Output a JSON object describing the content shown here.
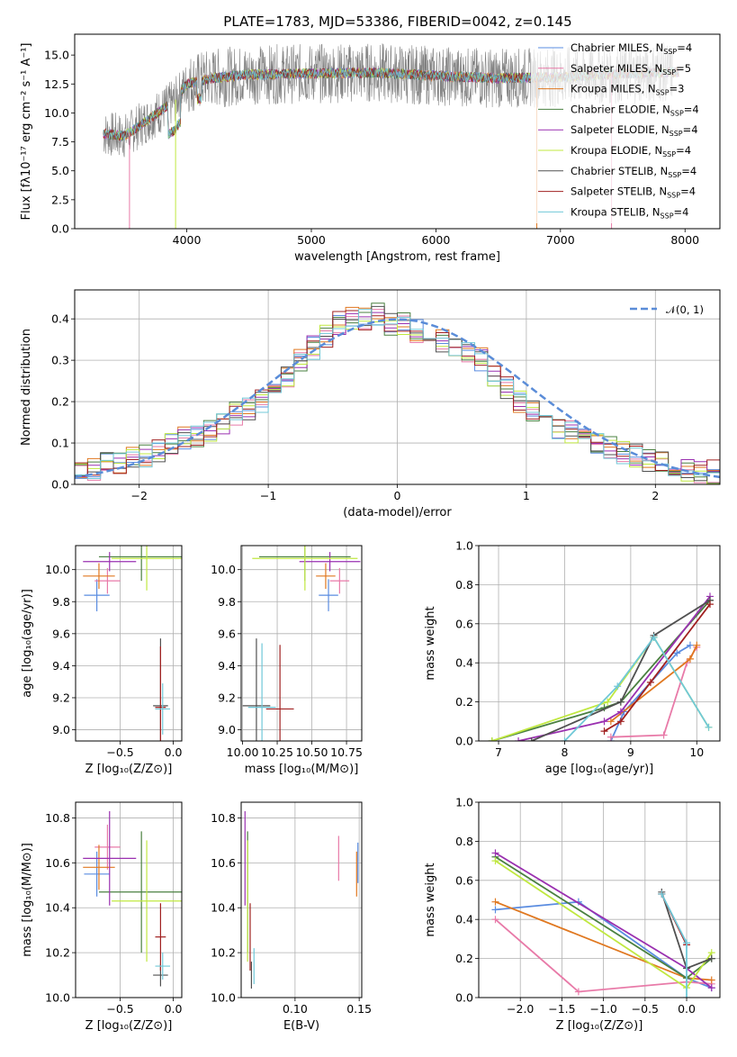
{
  "figure_title": "PLATE=1783, MJD=53386, FIBERID=0042, z=0.145",
  "colors": {
    "Chabrier MILES": "#5a8ce0",
    "Salpeter MILES": "#e87aa8",
    "Kroupa MILES": "#e07820",
    "Chabrier ELODIE": "#4a8040",
    "Salpeter ELODIE": "#9a30b0",
    "Kroupa ELODIE": "#c0e840",
    "Chabrier STELIB": "#505050",
    "Salpeter STELIB": "#a02020",
    "Kroupa STELIB": "#70c8d8"
  },
  "chart_data": [
    {
      "type": "line",
      "title": "PLATE=1783, MJD=53386, FIBERID=0042, z=0.145",
      "xlabel": "wavelength [Angstrom, rest frame]",
      "ylabel": "Flux [fλ10⁻¹⁷ erg cm⁻² s⁻¹ A⁻¹]",
      "xlim": [
        3100,
        8280
      ],
      "ylim": [
        0,
        16.8
      ],
      "xticks": [
        "4000",
        "5000",
        "6000",
        "7000",
        "8000"
      ],
      "yticks": [
        "0.0",
        "2.5",
        "5.0",
        "7.5",
        "10.0",
        "12.5",
        "15.0"
      ],
      "legend_position": "upper-right",
      "legend": [
        {
          "label": "Chabrier MILES, N",
          "sub": "SSP",
          "tail": "=4"
        },
        {
          "label": "Salpeter MILES, N",
          "sub": "SSP",
          "tail": "=5"
        },
        {
          "label": "Kroupa MILES, N",
          "sub": "SSP",
          "tail": "=3"
        },
        {
          "label": "Chabrier ELODIE, N",
          "sub": "SSP",
          "tail": "=4"
        },
        {
          "label": "Salpeter ELODIE, N",
          "sub": "SSP",
          "tail": "=4"
        },
        {
          "label": "Kroupa ELODIE, N",
          "sub": "SSP",
          "tail": "=4"
        },
        {
          "label": "Chabrier STELIB, N",
          "sub": "SSP",
          "tail": "=4"
        },
        {
          "label": "Salpeter STELIB, N",
          "sub": "SSP",
          "tail": "=4"
        },
        {
          "label": "Kroupa STELIB, N",
          "sub": "SSP",
          "tail": "=4"
        }
      ],
      "continuum_x": [
        3330,
        3500,
        3700,
        3900,
        4000,
        4200,
        4500,
        5000,
        5500,
        6000,
        6500,
        7000,
        7500,
        7900
      ],
      "continuum_y": [
        8.2,
        8.0,
        9.5,
        11.0,
        12.5,
        13.0,
        13.3,
        13.4,
        13.5,
        13.2,
        13.0,
        13.1,
        13.4,
        13.5
      ]
    },
    {
      "type": "line",
      "xlabel": "(data-model)/error",
      "ylabel": "Normed distribution",
      "xlim": [
        -2.5,
        2.5
      ],
      "ylim": [
        0,
        0.47
      ],
      "xticks": [
        "−2",
        "−1",
        "0",
        "1",
        "2"
      ],
      "yticks": [
        "0.0",
        "0.1",
        "0.2",
        "0.3",
        "0.4"
      ],
      "legend": "𝒩(0, 1)",
      "legend_position": "upper-right",
      "bins": [
        -2.5,
        -2.4,
        -2.3,
        -2.2,
        -2.1,
        -2.0,
        -1.9,
        -1.8,
        -1.7,
        -1.6,
        -1.5,
        -1.4,
        -1.3,
        -1.2,
        -1.1,
        -1.0,
        -0.9,
        -0.8,
        -0.7,
        -0.6,
        -0.5,
        -0.4,
        -0.3,
        -0.2,
        -0.1,
        0.0,
        0.1,
        0.2,
        0.3,
        0.4,
        0.5,
        0.6,
        0.7,
        0.8,
        0.9,
        1.0,
        1.1,
        1.2,
        1.3,
        1.4,
        1.5,
        1.6,
        1.7,
        1.8,
        1.9,
        2.0,
        2.1,
        2.2,
        2.3,
        2.4
      ],
      "histogram_mean": [
        0.03,
        0.04,
        0.05,
        0.055,
        0.06,
        0.07,
        0.08,
        0.095,
        0.11,
        0.12,
        0.13,
        0.15,
        0.17,
        0.18,
        0.2,
        0.22,
        0.26,
        0.3,
        0.33,
        0.36,
        0.39,
        0.4,
        0.4,
        0.41,
        0.39,
        0.39,
        0.37,
        0.37,
        0.35,
        0.33,
        0.32,
        0.3,
        0.26,
        0.23,
        0.2,
        0.18,
        0.16,
        0.14,
        0.13,
        0.11,
        0.1,
        0.09,
        0.08,
        0.07,
        0.06,
        0.05,
        0.04,
        0.035,
        0.03,
        0.03
      ]
    },
    {
      "type": "scatter",
      "xlabel": "Z [log₁₀(Z/Z⊙)]",
      "ylabel": "age  [log₁₀(age/yr)]",
      "xlim": [
        -0.92,
        0.08
      ],
      "ylim": [
        8.93,
        10.15
      ],
      "xticks": [
        "−0.5",
        "0.0"
      ],
      "yticks": [
        "9.0",
        "9.2",
        "9.4",
        "9.6",
        "9.8",
        "10.0"
      ]
    },
    {
      "type": "scatter",
      "xlabel": "mass [log₁₀(M/M⊙)]",
      "xlim": [
        9.99,
        10.86
      ],
      "ylim": [
        8.93,
        10.15
      ],
      "xticks": [
        "10.00",
        "10.25",
        "10.50",
        "10.75"
      ],
      "yticks": [
        "9.0",
        "9.2",
        "9.4",
        "9.6",
        "9.8",
        "10.0"
      ]
    },
    {
      "type": "line",
      "xlabel": "age  [log₁₀(age/yr)]",
      "ylabel": "mass weight",
      "xlim": [
        6.7,
        10.35
      ],
      "ylim": [
        0,
        1.0
      ],
      "xticks": [
        "7",
        "8",
        "9",
        "10"
      ],
      "yticks": [
        "0.0",
        "0.2",
        "0.4",
        "0.6",
        "0.8",
        "1.0"
      ],
      "series": [
        {
          "model": "Chabrier MILES",
          "x": [
            8.7,
            8.9,
            9.7,
            9.9
          ],
          "y": [
            0.0,
            0.15,
            0.45,
            0.49
          ]
        },
        {
          "model": "Salpeter MILES",
          "x": [
            8.7,
            9.5,
            9.85,
            10.0
          ],
          "y": [
            0.02,
            0.03,
            0.4,
            0.48
          ]
        },
        {
          "model": "Kroupa MILES",
          "x": [
            8.7,
            9.9,
            10.0
          ],
          "y": [
            0.1,
            0.42,
            0.49
          ]
        },
        {
          "model": "Chabrier ELODIE",
          "x": [
            6.9,
            8.6,
            8.85,
            10.2
          ],
          "y": [
            0.0,
            0.17,
            0.2,
            0.72
          ]
        },
        {
          "model": "Salpeter ELODIE",
          "x": [
            7.3,
            8.6,
            8.85,
            10.2
          ],
          "y": [
            0.0,
            0.1,
            0.15,
            0.74
          ]
        },
        {
          "model": "Kroupa ELODIE",
          "x": [
            6.9,
            8.65,
            9.35,
            10.18
          ],
          "y": [
            0.0,
            0.2,
            0.53,
            0.07
          ]
        },
        {
          "model": "Chabrier STELIB",
          "x": [
            7.5,
            8.85,
            9.35,
            10.2
          ],
          "y": [
            0.0,
            0.2,
            0.54,
            0.72
          ]
        },
        {
          "model": "Salpeter STELIB",
          "x": [
            8.6,
            8.85,
            9.3,
            10.2
          ],
          "y": [
            0.05,
            0.1,
            0.3,
            0.7
          ]
        },
        {
          "model": "Kroupa STELIB",
          "x": [
            8.0,
            8.8,
            9.35,
            10.18
          ],
          "y": [
            0.0,
            0.28,
            0.53,
            0.07
          ]
        }
      ]
    },
    {
      "type": "scatter",
      "xlabel": "Z [log₁₀(Z/Z⊙)]",
      "ylabel": "mass [log₁₀(M/M⊙)]",
      "xlim": [
        -0.92,
        0.08
      ],
      "ylim": [
        10.0,
        10.87
      ],
      "xticks": [
        "−0.5",
        "0.0"
      ],
      "yticks": [
        "10.0",
        "10.2",
        "10.4",
        "10.6",
        "10.8"
      ]
    },
    {
      "type": "scatter",
      "xlabel": "E(B-V)",
      "xlim": [
        0.058,
        0.152
      ],
      "ylim": [
        10.0,
        10.87
      ],
      "xticks": [
        "0.10",
        "0.15"
      ],
      "yticks": [
        "10.0",
        "10.2",
        "10.4",
        "10.6",
        "10.8"
      ]
    },
    {
      "type": "line",
      "xlabel": "Z [log₁₀(Z/Z⊙)]",
      "ylabel": "mass weight",
      "xlim": [
        -2.5,
        0.4
      ],
      "ylim": [
        0,
        1.0
      ],
      "xticks": [
        "−2.0",
        "−1.5",
        "−1.0",
        "−0.5",
        "0.0"
      ],
      "yticks": [
        "0.0",
        "0.2",
        "0.4",
        "0.6",
        "0.8",
        "1.0"
      ],
      "series": [
        {
          "model": "Chabrier MILES",
          "x": [
            -2.3,
            -1.3,
            0.0,
            0.3
          ],
          "y": [
            0.45,
            0.49,
            0.1,
            0.05
          ]
        },
        {
          "model": "Salpeter MILES",
          "x": [
            -2.3,
            -1.3,
            0.0,
            0.3
          ],
          "y": [
            0.4,
            0.03,
            0.08,
            0.07
          ]
        },
        {
          "model": "Kroupa MILES",
          "x": [
            -2.3,
            0.0,
            0.3
          ],
          "y": [
            0.49,
            0.1,
            0.09
          ]
        },
        {
          "model": "Chabrier ELODIE",
          "x": [
            -2.3,
            0.0,
            0.3
          ],
          "y": [
            0.72,
            0.1,
            0.2
          ]
        },
        {
          "model": "Salpeter ELODIE",
          "x": [
            -2.3,
            0.0,
            0.3
          ],
          "y": [
            0.74,
            0.15,
            0.05
          ]
        },
        {
          "model": "Kroupa ELODIE",
          "x": [
            -2.3,
            0.0,
            0.3
          ],
          "y": [
            0.7,
            0.05,
            0.23
          ]
        },
        {
          "model": "Chabrier STELIB",
          "x": [
            -0.3,
            0.0,
            0.3
          ],
          "y": [
            0.54,
            0.15,
            0.2
          ]
        },
        {
          "model": "Salpeter STELIB",
          "x": [
            -0.3,
            0.0
          ],
          "y": [
            0.53,
            0.27
          ]
        },
        {
          "model": "Kroupa STELIB",
          "x": [
            -0.3,
            0.0,
            0.0
          ],
          "y": [
            0.53,
            0.28,
            0.0
          ]
        }
      ]
    }
  ],
  "crosses_age_z": [
    {
      "model": "Chabrier MILES",
      "x": -0.72,
      "xerr": 0.12,
      "y": 9.84,
      "yerr": 0.1
    },
    {
      "model": "Salpeter MILES",
      "x": -0.62,
      "xerr": 0.12,
      "y": 9.93,
      "yerr": 0.08
    },
    {
      "model": "Kroupa MILES",
      "x": -0.7,
      "xerr": 0.15,
      "y": 9.96,
      "yerr": 0.08
    },
    {
      "model": "Chabrier ELODIE",
      "x": -0.3,
      "xerr": 0.4,
      "y": 10.08,
      "yerr": 0.15
    },
    {
      "model": "Salpeter ELODIE",
      "x": -0.6,
      "xerr": 0.25,
      "y": 10.05,
      "yerr": 0.06
    },
    {
      "model": "Kroupa ELODIE",
      "x": -0.25,
      "xerr": 0.33,
      "y": 10.07,
      "yerr": 0.2
    },
    {
      "model": "Chabrier STELIB",
      "x": -0.12,
      "xerr": 0.07,
      "y": 9.15,
      "yerr": 0.42
    },
    {
      "model": "Salpeter STELIB",
      "x": -0.12,
      "xerr": 0.05,
      "y": 9.14,
      "yerr": 0.38
    },
    {
      "model": "Kroupa STELIB",
      "x": -0.1,
      "xerr": 0.07,
      "y": 9.13,
      "yerr": 0.16
    }
  ],
  "crosses_age_mass": [
    {
      "model": "Chabrier MILES",
      "x": 10.62,
      "xerr": 0.07,
      "y": 9.84,
      "yerr": 0.1
    },
    {
      "model": "Salpeter MILES",
      "x": 10.7,
      "xerr": 0.07,
      "y": 9.93,
      "yerr": 0.08
    },
    {
      "model": "Kroupa MILES",
      "x": 10.6,
      "xerr": 0.07,
      "y": 9.96,
      "yerr": 0.08
    },
    {
      "model": "Chabrier ELODIE",
      "x": 10.45,
      "xerr": 0.33,
      "y": 10.08,
      "yerr": 0.15
    },
    {
      "model": "Salpeter ELODIE",
      "x": 10.63,
      "xerr": 0.22,
      "y": 10.05,
      "yerr": 0.06
    },
    {
      "model": "Kroupa ELODIE",
      "x": 10.45,
      "xerr": 0.38,
      "y": 10.07,
      "yerr": 0.2
    },
    {
      "model": "Chabrier STELIB",
      "x": 10.1,
      "xerr": 0.1,
      "y": 9.15,
      "yerr": 0.42
    },
    {
      "model": "Salpeter STELIB",
      "x": 10.27,
      "xerr": 0.1,
      "y": 9.13,
      "yerr": 0.4
    },
    {
      "model": "Kroupa STELIB",
      "x": 10.14,
      "xerr": 0.1,
      "y": 9.14,
      "yerr": 0.4
    }
  ],
  "crosses_mass_z": [
    {
      "model": "Chabrier MILES",
      "x": -0.72,
      "xerr": 0.12,
      "y": 10.55,
      "yerr": 0.1
    },
    {
      "model": "Salpeter MILES",
      "x": -0.62,
      "xerr": 0.12,
      "y": 10.67,
      "yerr": 0.1
    },
    {
      "model": "Kroupa MILES",
      "x": -0.7,
      "xerr": 0.15,
      "y": 10.58,
      "yerr": 0.1
    },
    {
      "model": "Chabrier ELODIE",
      "x": -0.3,
      "xerr": 0.4,
      "y": 10.47,
      "yerr": 0.27
    },
    {
      "model": "Salpeter ELODIE",
      "x": -0.6,
      "xerr": 0.25,
      "y": 10.62,
      "yerr": 0.21
    },
    {
      "model": "Kroupa ELODIE",
      "x": -0.25,
      "xerr": 0.33,
      "y": 10.43,
      "yerr": 0.27
    },
    {
      "model": "Chabrier STELIB",
      "x": -0.12,
      "xerr": 0.07,
      "y": 10.1,
      "yerr": 0.05
    },
    {
      "model": "Salpeter STELIB",
      "x": -0.12,
      "xerr": 0.05,
      "y": 10.27,
      "yerr": 0.15
    },
    {
      "model": "Kroupa STELIB",
      "x": -0.1,
      "xerr": 0.07,
      "y": 10.14,
      "yerr": 0.06
    }
  ],
  "crosses_mass_ebv": [
    {
      "model": "Chabrier MILES",
      "x": 0.149,
      "y": 10.6,
      "yerr": 0.09
    },
    {
      "model": "Salpeter MILES",
      "x": 0.134,
      "y": 10.62,
      "yerr": 0.1
    },
    {
      "model": "Kroupa MILES",
      "x": 0.148,
      "y": 10.55,
      "yerr": 0.1
    },
    {
      "model": "Chabrier ELODIE",
      "x": 0.063,
      "y": 10.47,
      "yerr": 0.27
    },
    {
      "model": "Salpeter ELODIE",
      "x": 0.061,
      "y": 10.62,
      "yerr": 0.21
    },
    {
      "model": "Kroupa ELODIE",
      "x": 0.063,
      "y": 10.43,
      "yerr": 0.27
    },
    {
      "model": "Chabrier STELIB",
      "x": 0.066,
      "y": 10.1,
      "yerr": 0.06
    },
    {
      "model": "Salpeter STELIB",
      "x": 0.065,
      "y": 10.27,
      "yerr": 0.15
    },
    {
      "model": "Kroupa STELIB",
      "x": 0.068,
      "y": 10.14,
      "yerr": 0.08
    }
  ]
}
